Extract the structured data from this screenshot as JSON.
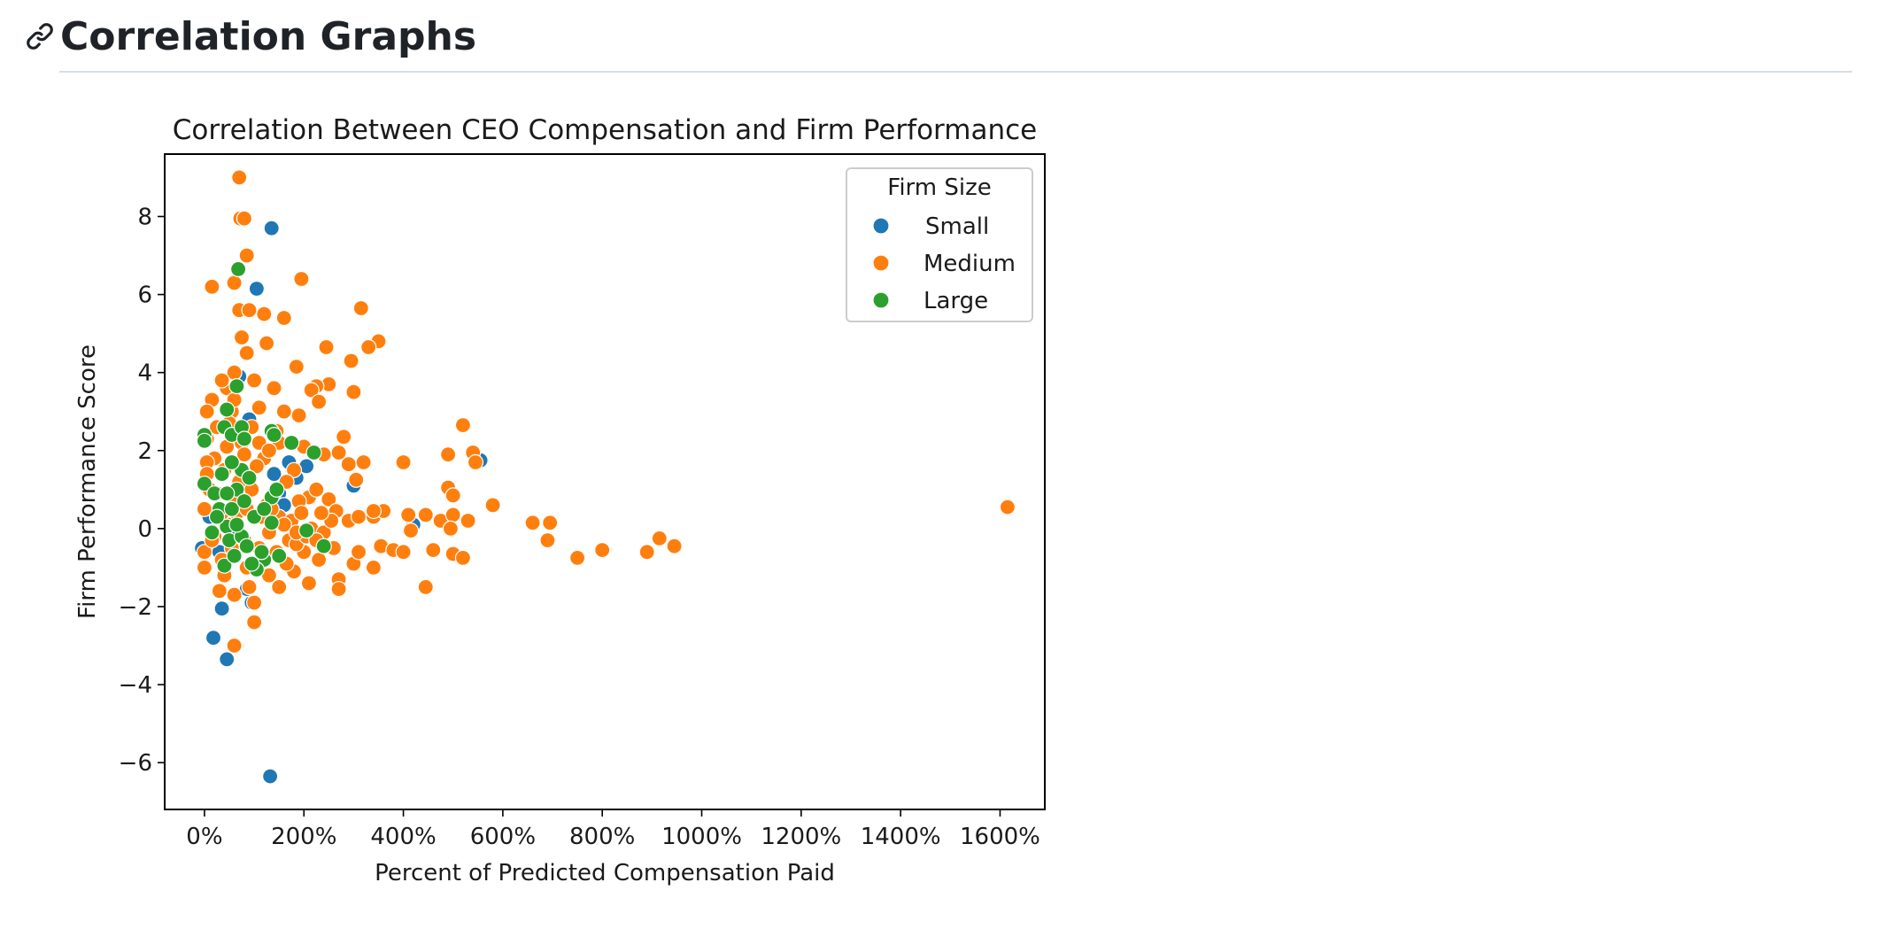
{
  "section": {
    "title": "Correlation Graphs",
    "anchor_icon": "link-icon"
  },
  "chart_data": {
    "type": "scatter",
    "title": "Correlation Between CEO Compensation and Firm Performance",
    "xlabel": "Percent of Predicted Compensation Paid",
    "ylabel": "Firm Performance Score",
    "xlim": [
      -80,
      1690
    ],
    "ylim": [
      -7.2,
      9.6
    ],
    "xticks": [
      0,
      200,
      400,
      600,
      800,
      1000,
      1200,
      1400,
      1600
    ],
    "xtick_labels": [
      "0%",
      "200%",
      "400%",
      "600%",
      "800%",
      "1000%",
      "1200%",
      "1400%",
      "1600%"
    ],
    "yticks": [
      -6,
      -4,
      -2,
      0,
      2,
      4,
      6,
      8
    ],
    "ytick_labels": [
      "−6",
      "−4",
      "−2",
      "0",
      "2",
      "4",
      "6",
      "8"
    ],
    "grid": false,
    "legend": {
      "title": "Firm Size",
      "placement": "top-right"
    },
    "series": [
      {
        "name": "Small",
        "color": "#1f77b4",
        "points": [
          [
            135,
            7.7
          ],
          [
            105,
            6.15
          ],
          [
            132,
            -6.35
          ],
          [
            45,
            -3.35
          ],
          [
            18,
            -2.8
          ],
          [
            35,
            -2.05
          ],
          [
            95,
            -1.9
          ],
          [
            85,
            -1.55
          ],
          [
            -5,
            -0.5
          ],
          [
            30,
            -0.6
          ],
          [
            60,
            -0.2
          ],
          [
            120,
            0.4
          ],
          [
            150,
            0.9
          ],
          [
            170,
            1.7
          ],
          [
            185,
            1.3
          ],
          [
            205,
            1.6
          ],
          [
            300,
            1.1
          ],
          [
            420,
            0.1
          ],
          [
            555,
            1.75
          ],
          [
            70,
            3.9
          ],
          [
            90,
            2.8
          ],
          [
            140,
            1.4
          ],
          [
            10,
            0.3
          ],
          [
            100,
            -0.9
          ],
          [
            160,
            0.6
          ]
        ]
      },
      {
        "name": "Medium",
        "color": "#ff7f0e",
        "points": [
          [
            70,
            9.0
          ],
          [
            72,
            7.95
          ],
          [
            80,
            7.95
          ],
          [
            85,
            7.0
          ],
          [
            195,
            6.4
          ],
          [
            15,
            6.2
          ],
          [
            60,
            6.3
          ],
          [
            70,
            5.6
          ],
          [
            90,
            5.6
          ],
          [
            120,
            5.5
          ],
          [
            160,
            5.4
          ],
          [
            315,
            5.65
          ],
          [
            350,
            4.8
          ],
          [
            330,
            4.65
          ],
          [
            245,
            4.65
          ],
          [
            75,
            4.9
          ],
          [
            295,
            4.3
          ],
          [
            125,
            4.75
          ],
          [
            185,
            4.15
          ],
          [
            250,
            3.7
          ],
          [
            225,
            3.65
          ],
          [
            215,
            3.55
          ],
          [
            300,
            3.5
          ],
          [
            230,
            3.25
          ],
          [
            280,
            2.35
          ],
          [
            45,
            3.6
          ],
          [
            60,
            4.0
          ],
          [
            85,
            4.5
          ],
          [
            100,
            3.8
          ],
          [
            140,
            3.6
          ],
          [
            55,
            3.0
          ],
          [
            110,
            3.1
          ],
          [
            160,
            3.0
          ],
          [
            190,
            2.9
          ],
          [
            25,
            2.6
          ],
          [
            95,
            2.6
          ],
          [
            145,
            2.5
          ],
          [
            520,
            2.65
          ],
          [
            5,
            2.3
          ],
          [
            200,
            2.1
          ],
          [
            240,
            1.9
          ],
          [
            270,
            1.95
          ],
          [
            290,
            1.65
          ],
          [
            320,
            1.7
          ],
          [
            400,
            1.7
          ],
          [
            490,
            1.9
          ],
          [
            540,
            1.95
          ],
          [
            545,
            1.7
          ],
          [
            305,
            1.25
          ],
          [
            490,
            1.05
          ],
          [
            500,
            0.85
          ],
          [
            580,
            0.6
          ],
          [
            120,
            1.8
          ],
          [
            180,
            1.5
          ],
          [
            40,
            1.5
          ],
          [
            70,
            1.2
          ],
          [
            10,
            1.0
          ],
          [
            140,
            0.9
          ],
          [
            210,
            0.8
          ],
          [
            250,
            0.75
          ],
          [
            265,
            0.45
          ],
          [
            290,
            0.2
          ],
          [
            310,
            0.3
          ],
          [
            340,
            0.3
          ],
          [
            360,
            0.45
          ],
          [
            340,
            0.45
          ],
          [
            410,
            0.35
          ],
          [
            445,
            0.35
          ],
          [
            475,
            0.2
          ],
          [
            500,
            0.35
          ],
          [
            530,
            0.2
          ],
          [
            495,
            0.0
          ],
          [
            660,
            0.15
          ],
          [
            695,
            0.15
          ],
          [
            915,
            -0.25
          ],
          [
            945,
            -0.45
          ],
          [
            1615,
            0.55
          ],
          [
            0,
            0.5
          ],
          [
            0,
            -0.6
          ],
          [
            0,
            -1.0
          ],
          [
            20,
            -0.2
          ],
          [
            50,
            0.1
          ],
          [
            80,
            -0.3
          ],
          [
            110,
            -0.5
          ],
          [
            130,
            -0.1
          ],
          [
            170,
            -0.3
          ],
          [
            200,
            -0.6
          ],
          [
            230,
            -0.8
          ],
          [
            260,
            -0.5
          ],
          [
            270,
            -1.3
          ],
          [
            300,
            -0.9
          ],
          [
            310,
            -0.6
          ],
          [
            340,
            -1.0
          ],
          [
            355,
            -0.45
          ],
          [
            380,
            -0.55
          ],
          [
            400,
            -0.6
          ],
          [
            415,
            -0.05
          ],
          [
            460,
            -0.55
          ],
          [
            500,
            -0.65
          ],
          [
            520,
            -0.75
          ],
          [
            445,
            -1.5
          ],
          [
            690,
            -0.3
          ],
          [
            750,
            -0.75
          ],
          [
            800,
            -0.55
          ],
          [
            890,
            -0.6
          ],
          [
            60,
            -1.7
          ],
          [
            30,
            -1.6
          ],
          [
            100,
            -1.9
          ],
          [
            100,
            -2.4
          ],
          [
            60,
            -3.0
          ],
          [
            150,
            -1.5
          ],
          [
            210,
            -1.4
          ],
          [
            270,
            -1.55
          ],
          [
            180,
            -1.1
          ],
          [
            130,
            -1.2
          ],
          [
            40,
            -1.2
          ],
          [
            90,
            -1.5
          ],
          [
            25,
            0.9
          ],
          [
            65,
            0.4
          ],
          [
            95,
            1.0
          ],
          [
            125,
            0.6
          ],
          [
            150,
            0.3
          ],
          [
            175,
            0.2
          ],
          [
            190,
            0.7
          ],
          [
            215,
            0.0
          ],
          [
            240,
            -0.1
          ],
          [
            255,
            0.2
          ],
          [
            20,
            1.8
          ],
          [
            45,
            2.1
          ],
          [
            75,
            2.2
          ],
          [
            105,
            1.6
          ],
          [
            150,
            2.2
          ],
          [
            165,
            1.2
          ],
          [
            195,
            0.4
          ],
          [
            225,
            1.0
          ],
          [
            235,
            0.4
          ],
          [
            15,
            -0.3
          ],
          [
            35,
            -0.8
          ],
          [
            55,
            -0.5
          ],
          [
            85,
            -1.0
          ],
          [
            115,
            -0.8
          ],
          [
            145,
            -0.6
          ],
          [
            165,
            -0.9
          ],
          [
            185,
            -0.4
          ],
          [
            205,
            -0.2
          ],
          [
            225,
            -0.3
          ],
          [
            35,
            0.4
          ],
          [
            60,
            0.8
          ],
          [
            85,
            0.5
          ],
          [
            115,
            0.3
          ],
          [
            135,
            0.5
          ],
          [
            160,
            0.1
          ],
          [
            185,
            -0.1
          ],
          [
            110,
            2.2
          ],
          [
            130,
            2.0
          ],
          [
            80,
            1.9
          ],
          [
            50,
            2.7
          ],
          [
            60,
            3.3
          ],
          [
            35,
            3.8
          ],
          [
            15,
            3.3
          ],
          [
            5,
            3.0
          ],
          [
            5,
            1.7
          ],
          [
            5,
            1.4
          ]
        ]
      },
      {
        "name": "Large",
        "color": "#2ca02c",
        "points": [
          [
            68,
            6.65
          ],
          [
            65,
            3.65
          ],
          [
            45,
            3.05
          ],
          [
            40,
            2.6
          ],
          [
            55,
            2.4
          ],
          [
            0,
            2.4
          ],
          [
            0,
            2.25
          ],
          [
            75,
            2.6
          ],
          [
            80,
            2.3
          ],
          [
            135,
            2.5
          ],
          [
            175,
            2.2
          ],
          [
            220,
            1.95
          ],
          [
            140,
            2.4
          ],
          [
            0,
            1.15
          ],
          [
            20,
            0.9
          ],
          [
            30,
            0.5
          ],
          [
            45,
            0.05
          ],
          [
            50,
            -0.3
          ],
          [
            40,
            -0.95
          ],
          [
            60,
            -0.7
          ],
          [
            75,
            -0.2
          ],
          [
            55,
            0.5
          ],
          [
            65,
            1.0
          ],
          [
            75,
            1.5
          ],
          [
            90,
            1.3
          ],
          [
            100,
            0.3
          ],
          [
            120,
            -0.8
          ],
          [
            105,
            -1.05
          ],
          [
            135,
            0.15
          ],
          [
            150,
            -0.7
          ],
          [
            135,
            0.8
          ],
          [
            205,
            -0.05
          ],
          [
            240,
            -0.45
          ],
          [
            85,
            -0.45
          ],
          [
            35,
            1.4
          ],
          [
            55,
            1.7
          ],
          [
            65,
            0.1
          ],
          [
            80,
            0.7
          ],
          [
            25,
            0.3
          ],
          [
            45,
            0.9
          ],
          [
            15,
            -0.1
          ],
          [
            95,
            -0.9
          ],
          [
            115,
            -0.6
          ],
          [
            120,
            0.5
          ],
          [
            145,
            1.0
          ]
        ]
      }
    ]
  }
}
